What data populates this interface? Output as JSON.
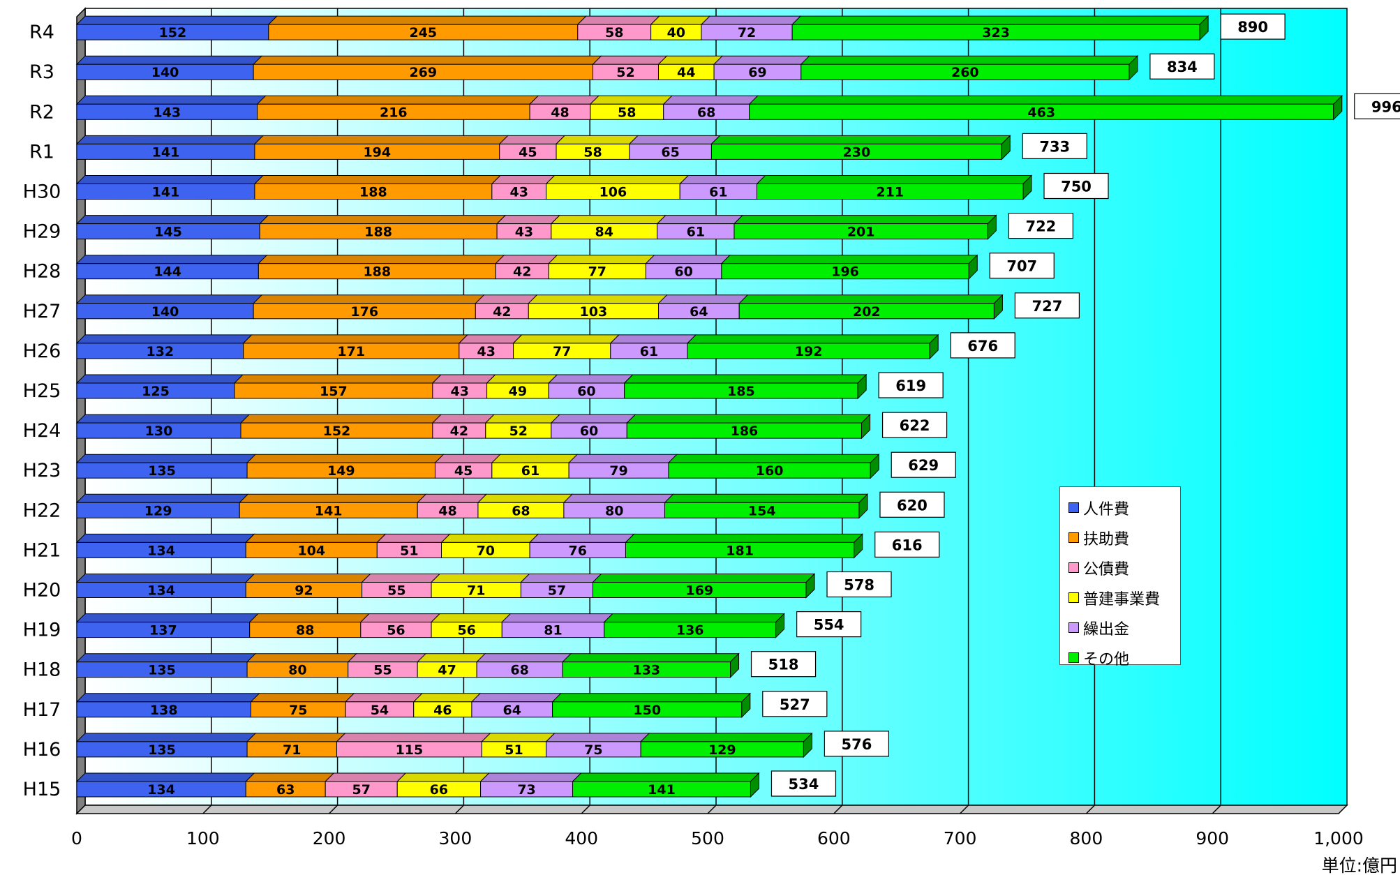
{
  "chart_data": {
    "type": "bar",
    "orientation": "horizontal",
    "stacked": true,
    "categories": [
      "H15",
      "H16",
      "H17",
      "H18",
      "H19",
      "H20",
      "H21",
      "H22",
      "H23",
      "H24",
      "H25",
      "H26",
      "H27",
      "H28",
      "H29",
      "H30",
      "R1",
      "R2",
      "R3",
      "R4"
    ],
    "series": [
      {
        "name": "人件費",
        "color": "#3d63f0",
        "values": [
          134,
          135,
          138,
          135,
          137,
          134,
          134,
          129,
          135,
          130,
          125,
          132,
          140,
          144,
          145,
          141,
          141,
          143,
          140,
          152
        ]
      },
      {
        "name": "扶助費",
        "color": "#ff9a00",
        "values": [
          63,
          71,
          75,
          80,
          88,
          92,
          104,
          141,
          149,
          152,
          157,
          171,
          176,
          188,
          188,
          188,
          194,
          216,
          269,
          245
        ]
      },
      {
        "name": "公債費",
        "color": "#ff99cc",
        "values": [
          57,
          115,
          54,
          55,
          56,
          55,
          51,
          48,
          45,
          42,
          43,
          43,
          42,
          42,
          43,
          43,
          45,
          48,
          52,
          58
        ]
      },
      {
        "name": "普建事業費",
        "color": "#ffff00",
        "values": [
          66,
          51,
          46,
          47,
          56,
          71,
          70,
          68,
          61,
          52,
          49,
          77,
          103,
          77,
          84,
          106,
          58,
          58,
          44,
          40
        ]
      },
      {
        "name": "繰出金",
        "color": "#cc99ff",
        "values": [
          73,
          75,
          64,
          68,
          81,
          57,
          76,
          80,
          79,
          60,
          60,
          61,
          64,
          60,
          61,
          61,
          65,
          68,
          69,
          72
        ]
      },
      {
        "name": "その他",
        "color": "#00ee00",
        "values": [
          141,
          129,
          150,
          133,
          136,
          169,
          181,
          154,
          160,
          186,
          185,
          192,
          202,
          196,
          201,
          211,
          230,
          463,
          260,
          323
        ]
      }
    ],
    "totals": [
      534,
      576,
      527,
      518,
      554,
      578,
      616,
      620,
      629,
      622,
      619,
      676,
      727,
      707,
      722,
      750,
      733,
      996,
      834,
      890
    ],
    "x_ticks": [
      "0",
      "100",
      "200",
      "300",
      "400",
      "500",
      "600",
      "700",
      "800",
      "900",
      "1,000"
    ],
    "xlim": [
      0,
      1000
    ],
    "unit_label": "単位:億円",
    "grid": true,
    "legend_position": "right-middle",
    "background_gradient": [
      "#ffffff",
      "#00ffff"
    ]
  }
}
